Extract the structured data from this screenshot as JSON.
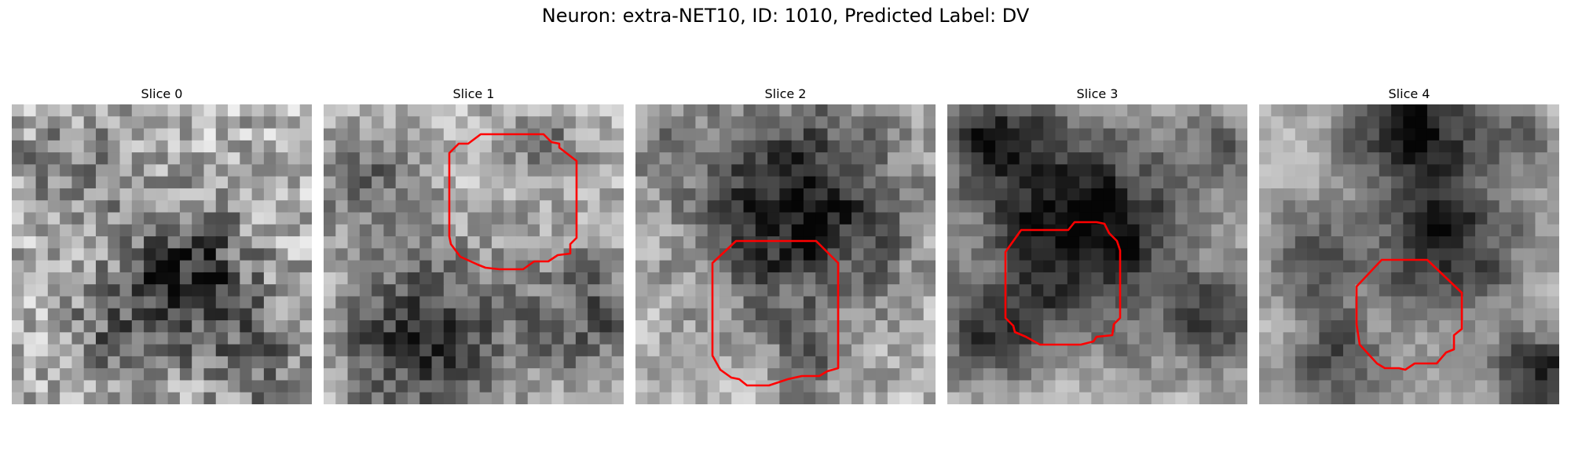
{
  "figure": {
    "title": "Neuron: extra-NET10, ID: 1010, Predicted Label: DV",
    "contour_color": "#ff0000"
  },
  "panels": [
    {
      "title": "Slice 0",
      "has_contour": false
    },
    {
      "title": "Slice 1",
      "has_contour": true
    },
    {
      "title": "Slice 2",
      "has_contour": true
    },
    {
      "title": "Slice 3",
      "has_contour": true
    },
    {
      "title": "Slice 4",
      "has_contour": true
    }
  ]
}
